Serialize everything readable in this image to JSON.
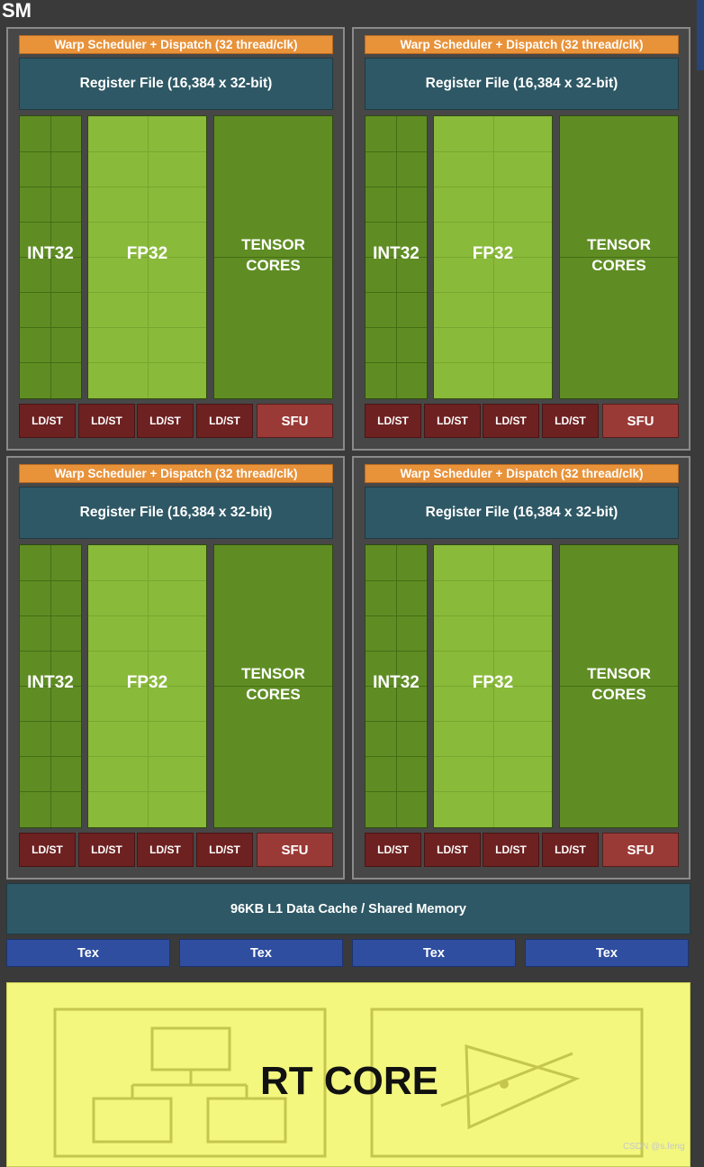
{
  "sm_label": "SM",
  "partitions": [
    {
      "warp_scheduler": "Warp Scheduler + Dispatch (32 thread/clk)",
      "register_file": "Register File (16,384 x 32-bit)",
      "int_label": "INT32",
      "fp_label": "FP32",
      "tensor_label_line1": "TENSOR",
      "tensor_label_line2": "CORES",
      "ldst_labels": [
        "LD/ST",
        "LD/ST",
        "LD/ST",
        "LD/ST"
      ],
      "sfu_label": "SFU"
    },
    {
      "warp_scheduler": "Warp Scheduler + Dispatch (32 thread/clk)",
      "register_file": "Register File (16,384 x 32-bit)",
      "int_label": "INT32",
      "fp_label": "FP32",
      "tensor_label_line1": "TENSOR",
      "tensor_label_line2": "CORES",
      "ldst_labels": [
        "LD/ST",
        "LD/ST",
        "LD/ST",
        "LD/ST"
      ],
      "sfu_label": "SFU"
    },
    {
      "warp_scheduler": "Warp Scheduler + Dispatch (32 thread/clk)",
      "register_file": "Register File (16,384 x 32-bit)",
      "int_label": "INT32",
      "fp_label": "FP32",
      "tensor_label_line1": "TENSOR",
      "tensor_label_line2": "CORES",
      "ldst_labels": [
        "LD/ST",
        "LD/ST",
        "LD/ST",
        "LD/ST"
      ],
      "sfu_label": "SFU"
    },
    {
      "warp_scheduler": "Warp Scheduler + Dispatch (32 thread/clk)",
      "register_file": "Register File (16,384 x 32-bit)",
      "int_label": "INT32",
      "fp_label": "FP32",
      "tensor_label_line1": "TENSOR",
      "tensor_label_line2": "CORES",
      "ldst_labels": [
        "LD/ST",
        "LD/ST",
        "LD/ST",
        "LD/ST"
      ],
      "sfu_label": "SFU"
    }
  ],
  "l1_cache": "96KB L1 Data Cache / Shared Memory",
  "tex_units": [
    "Tex",
    "Tex",
    "Tex",
    "Tex"
  ],
  "rt_core": "RT CORE",
  "watermark": "CSDN @s.feng",
  "colors": {
    "warp": "#e8923a",
    "register_file": "#2e5865",
    "int32": "#5f8d23",
    "fp32": "#8aba3a",
    "tensor": "#5f8d23",
    "ldst": "#6e2121",
    "sfu": "#9a3a36",
    "tex": "#2f4ea0",
    "rt_core": "#f3f77e"
  }
}
